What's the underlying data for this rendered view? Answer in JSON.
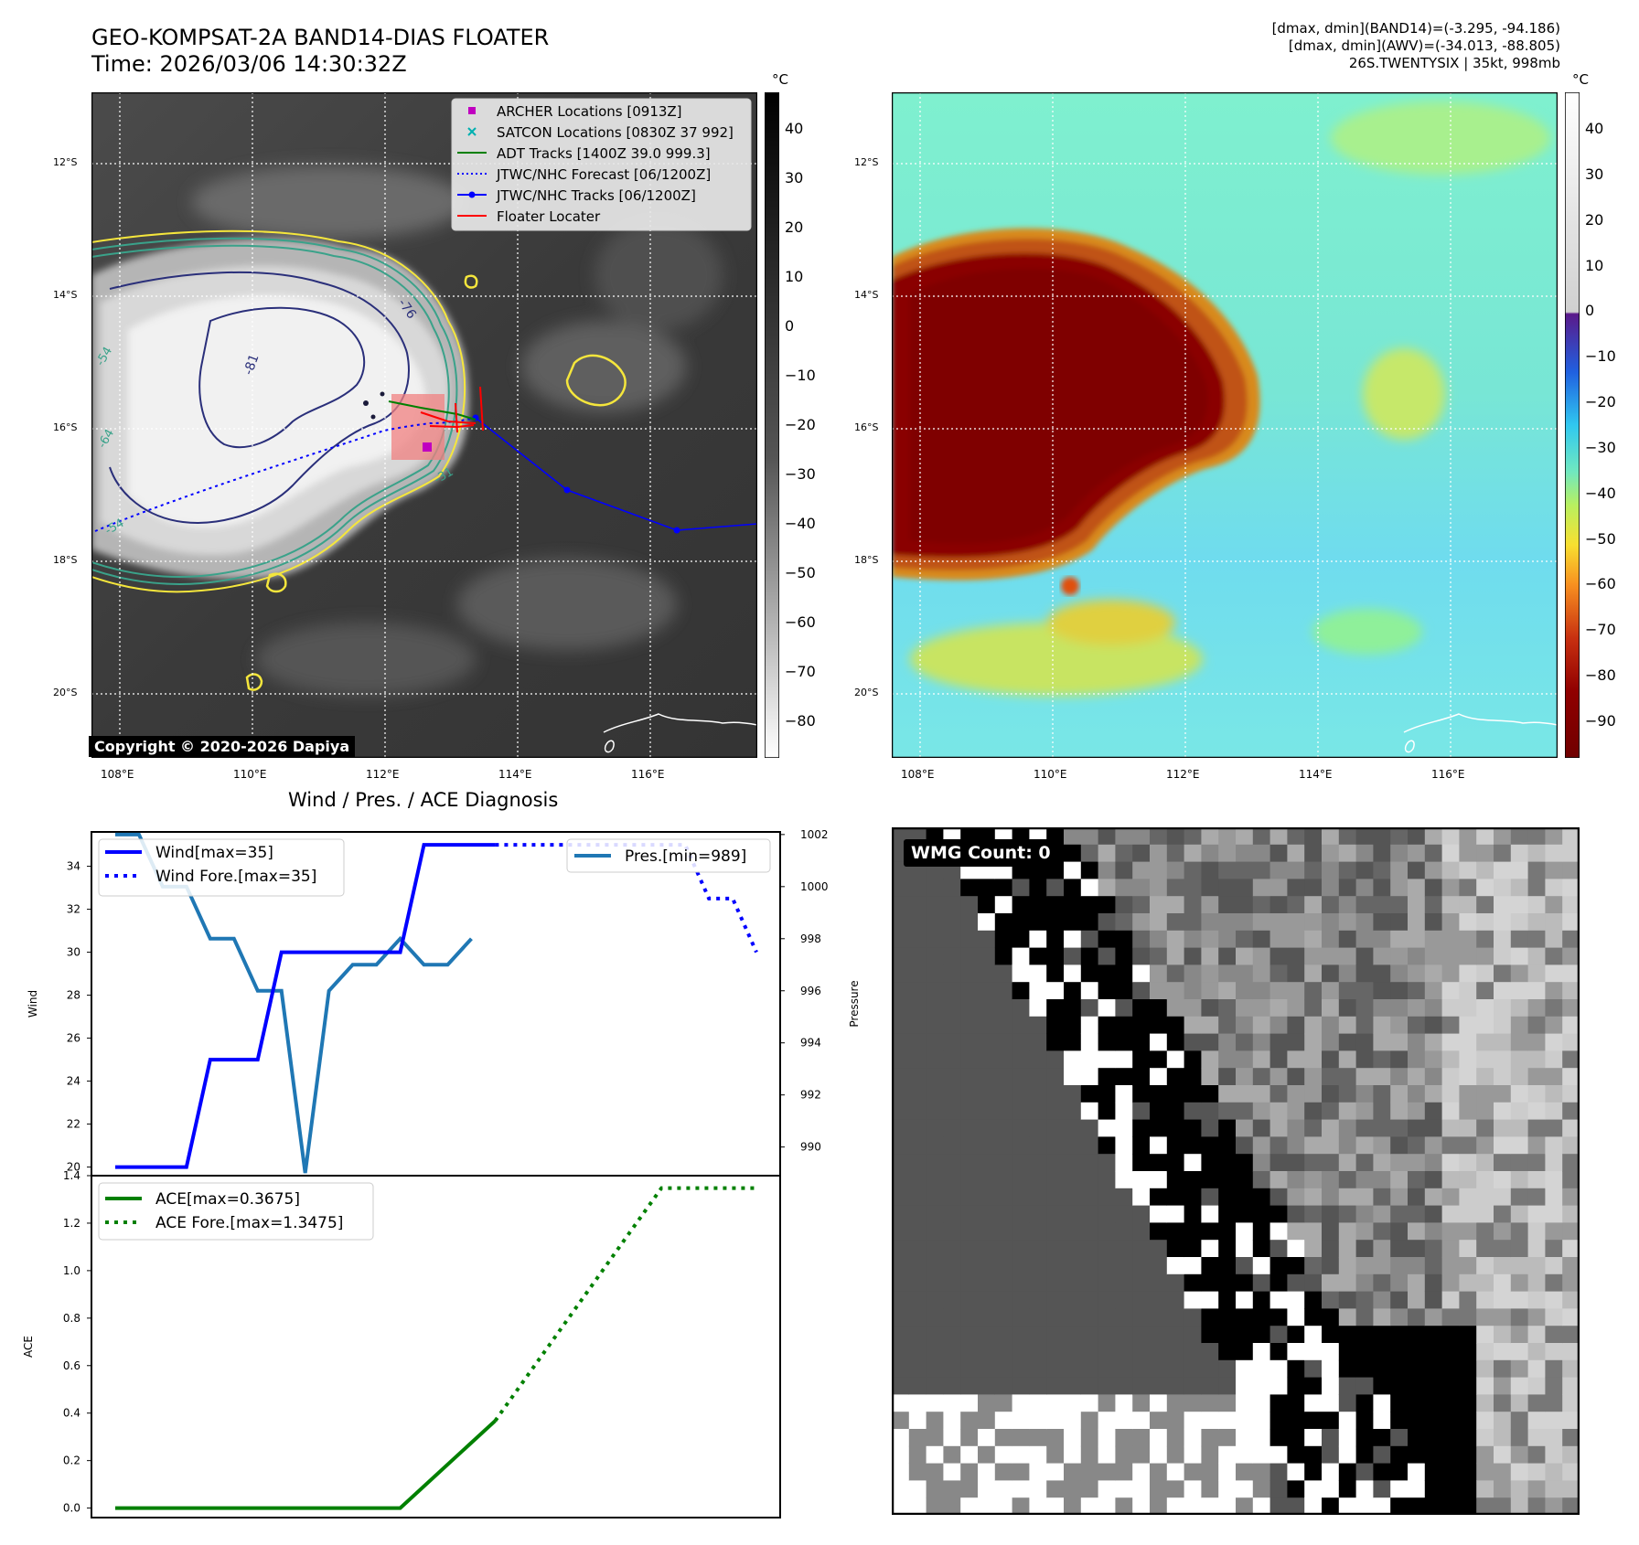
{
  "header": {
    "title_line1": "GEO-KOMPSAT-2A BAND14-DIAS FLOATER",
    "title_line2": "Time: 2026/03/06 14:30:32Z",
    "info_line1": "[dmax, dmin](BAND14)=(-3.295, -94.186)",
    "info_line2": "[dmax, dmin](AWV)=(-34.013, -88.805)",
    "info_line3": "26S.TWENTYSIX | 35kt, 998mb"
  },
  "colors": {
    "wind": "#0000ff",
    "pressure": "#1f77b4",
    "ace": "#008000",
    "floater": "#ff0000",
    "archer": "#c000c0",
    "satcon": "#00b0b0",
    "adt": "#008000",
    "jtwc": "#0000ff",
    "contour_yellow": "#f5e63c",
    "contour_teal": "#3aa28a",
    "contour_navy": "#2a2f7a"
  },
  "map_left": {
    "colorbar_unit": "°C",
    "colorbar_ticks": [
      "40",
      "30",
      "20",
      "10",
      "0",
      "−10",
      "−20",
      "−30",
      "−40",
      "−50",
      "−60",
      "−70",
      "−80"
    ],
    "lat_labels": [
      "12°S",
      "14°S",
      "16°S",
      "18°S",
      "20°S"
    ],
    "lon_labels": [
      "108°E",
      "110°E",
      "112°E",
      "114°E",
      "116°E"
    ],
    "contour_labels": [
      "-81",
      "-76",
      "-54",
      "-64",
      "-54",
      "-31"
    ],
    "copyright": "Copyright © 2020-2026 Dapiya",
    "legend": [
      {
        "label": "ARCHER Locations [0913Z]",
        "icon": "square-marker"
      },
      {
        "label": "SATCON Locations [0830Z 37 992]",
        "icon": "x-marker"
      },
      {
        "label": "ADT Tracks [1400Z 39.0 999.3]",
        "icon": "solid-line"
      },
      {
        "label": "JTWC/NHC Forecast [06/1200Z]",
        "icon": "dotted-line"
      },
      {
        "label": "JTWC/NHC Tracks [06/1200Z]",
        "icon": "line-dot"
      },
      {
        "label": "Floater Locater",
        "icon": "solid-line"
      }
    ]
  },
  "map_right": {
    "colorbar_unit": "°C",
    "colorbar_ticks": [
      "40",
      "30",
      "20",
      "10",
      "0",
      "−10",
      "−20",
      "−30",
      "−40",
      "−50",
      "−60",
      "−70",
      "−80",
      "−90"
    ],
    "lat_labels": [
      "12°S",
      "14°S",
      "16°S",
      "18°S",
      "20°S"
    ],
    "lon_labels": [
      "108°E",
      "110°E",
      "112°E",
      "114°E",
      "116°E"
    ]
  },
  "wmg": {
    "badge": "WMG Count: 0"
  },
  "chart_data": [
    {
      "type": "line",
      "title": "Wind / Pres. / ACE Diagnosis",
      "ylabel": "Wind",
      "ylim": [
        19.6,
        35.6
      ],
      "y_ticks": [
        20,
        22,
        24,
        26,
        28,
        30,
        32,
        34
      ],
      "series": [
        {
          "name": "Wind[max=35]",
          "style": "solid",
          "x": [
            0,
            3,
            4,
            6,
            7,
            8,
            9,
            10,
            11,
            12,
            13,
            14,
            15,
            16
          ],
          "values": [
            20,
            20,
            25,
            25,
            30,
            30,
            30,
            30,
            30,
            30,
            35,
            35,
            35,
            35
          ]
        },
        {
          "name": "Wind Fore.[max=35]",
          "style": "dotted",
          "x": [
            16,
            24,
            25,
            26,
            27
          ],
          "values": [
            35,
            35,
            32.5,
            32.5,
            30
          ]
        }
      ],
      "secondary_axis": {
        "ylabel": "Pressure",
        "ylim": [
          988.9,
          1002.1
        ],
        "y_ticks": [
          990,
          992,
          994,
          996,
          998,
          1000,
          1002
        ],
        "series": [
          {
            "name": "Pres.[min=989]",
            "style": "solid",
            "x": [
              0,
              1,
              2,
              3,
              4,
              5,
              6,
              7,
              8,
              9,
              10,
              11,
              12,
              13,
              14,
              15
            ],
            "values": [
              1002,
              1002,
              1000,
              1000,
              998,
              998,
              996,
              996,
              989,
              996,
              997,
              997,
              998,
              997,
              997,
              998
            ]
          }
        ]
      }
    },
    {
      "type": "line",
      "ylabel": "ACE",
      "ylim": [
        -0.04,
        1.4
      ],
      "y_ticks": [
        "0.0",
        "0.2",
        "0.4",
        "0.6",
        "0.8",
        "1.0",
        "1.2",
        "1.4"
      ],
      "series": [
        {
          "name": "ACE[max=0.3675]",
          "style": "solid",
          "x": [
            0,
            12,
            16
          ],
          "values": [
            0,
            0,
            0.3675
          ]
        },
        {
          "name": "ACE Fore.[max=1.3475]",
          "style": "dotted",
          "x": [
            16,
            23,
            27
          ],
          "values": [
            0.3675,
            1.3475,
            1.3475
          ]
        }
      ]
    }
  ]
}
